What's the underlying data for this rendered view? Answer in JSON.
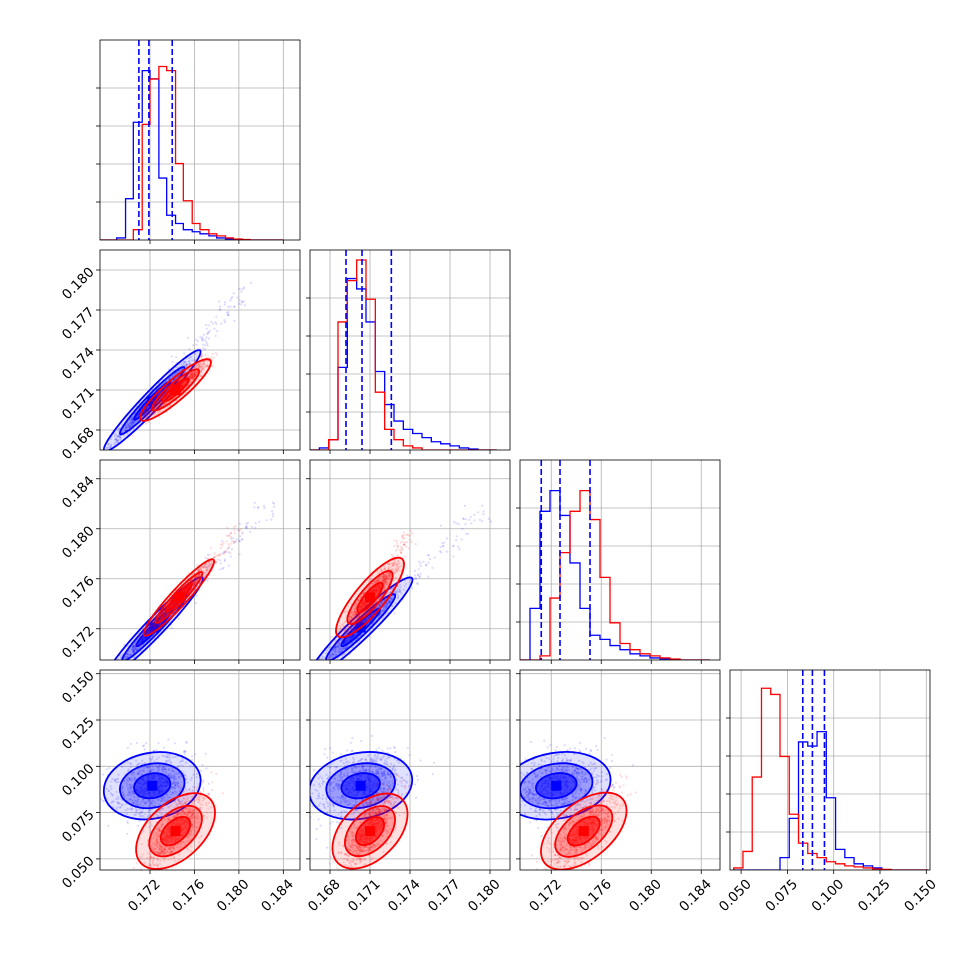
{
  "chart_data": {
    "type": "corner",
    "grid": true,
    "series": [
      {
        "name": "",
        "color": "#0000ff"
      },
      {
        "name": "",
        "color": "#ff0000"
      }
    ],
    "params": [
      {
        "range": [
          0.1675,
          0.1855
        ],
        "ticks": [
          "0.172",
          "0.176",
          "0.180",
          "0.184"
        ]
      },
      {
        "range": [
          0.1665,
          0.1815
        ],
        "ticks": [
          "0.168",
          "0.171",
          "0.174",
          "0.177",
          "0.180"
        ]
      },
      {
        "range": [
          0.1695,
          0.1855
        ],
        "ticks": [
          "0.172",
          "0.176",
          "0.180",
          "0.184"
        ]
      },
      {
        "range": [
          0.044,
          0.152
        ],
        "ticks": [
          "0.050",
          "0.075",
          "0.100",
          "0.125",
          "0.150"
        ]
      }
    ],
    "histograms": [
      {
        "quantile_lines": [
          0.171,
          0.1719,
          0.174
        ],
        "bin_edges": [
          0.1675,
          0.1683,
          0.169,
          0.1698,
          0.1705,
          0.1713,
          0.172,
          0.1728,
          0.1735,
          0.1743,
          0.175,
          0.1758,
          0.1765,
          0.1773,
          0.178,
          0.1788,
          0.1795,
          0.1803,
          0.181,
          0.1818,
          0.1825,
          0.1833,
          0.184
        ],
        "blue": [
          0,
          0,
          0.01,
          0.2,
          0.57,
          0.82,
          0.78,
          0.3,
          0.12,
          0.08,
          0.05,
          0.04,
          0.03,
          0.02,
          0.01,
          0.005,
          0.002,
          0,
          0,
          0,
          0,
          0
        ],
        "red": [
          0,
          0,
          0,
          0,
          0.05,
          0.56,
          0.78,
          0.84,
          0.82,
          0.37,
          0.19,
          0.08,
          0.05,
          0.03,
          0.02,
          0.01,
          0.005,
          0.002,
          0,
          0,
          0,
          0
        ]
      },
      {
        "quantile_lines": [
          0.1692,
          0.1704,
          0.1726
        ],
        "bin_edges": [
          0.1665,
          0.1672,
          0.1679,
          0.1686,
          0.1693,
          0.17,
          0.1707,
          0.1714,
          0.1721,
          0.1728,
          0.1735,
          0.1742,
          0.1749,
          0.1756,
          0.1763,
          0.177,
          0.1777,
          0.1784,
          0.1791,
          0.1798,
          0.1805
        ],
        "blue": [
          0,
          0.01,
          0.05,
          0.4,
          0.83,
          0.78,
          0.62,
          0.38,
          0.22,
          0.14,
          0.1,
          0.08,
          0.06,
          0.04,
          0.03,
          0.02,
          0.01,
          0.005,
          0,
          0
        ],
        "red": [
          0,
          0,
          0.05,
          0.62,
          0.82,
          0.92,
          0.73,
          0.28,
          0.1,
          0.05,
          0.02,
          0.01,
          0,
          0,
          0,
          0,
          0,
          0,
          0,
          0
        ]
      },
      {
        "quantile_lines": [
          0.1712,
          0.1727,
          0.1751
        ],
        "bin_edges": [
          0.1695,
          0.1703,
          0.1711,
          0.1719,
          0.1727,
          0.1735,
          0.1743,
          0.1751,
          0.1759,
          0.1767,
          0.1775,
          0.1783,
          0.1791,
          0.1799,
          0.1807,
          0.1815,
          0.1823,
          0.1831,
          0.1839,
          0.1847
        ],
        "blue": [
          0,
          0.25,
          0.72,
          0.82,
          0.7,
          0.47,
          0.25,
          0.12,
          0.1,
          0.07,
          0.05,
          0.03,
          0.02,
          0.01,
          0.005,
          0,
          0,
          0,
          0
        ],
        "red": [
          0,
          0,
          0.02,
          0.3,
          0.52,
          0.72,
          0.82,
          0.68,
          0.4,
          0.18,
          0.08,
          0.05,
          0.03,
          0.02,
          0.01,
          0.005,
          0,
          0,
          0
        ]
      },
      {
        "quantile_lines": [
          0.0833,
          0.0885,
          0.095
        ],
        "bin_edges": [
          0.046,
          0.051,
          0.056,
          0.061,
          0.066,
          0.071,
          0.076,
          0.081,
          0.086,
          0.091,
          0.096,
          0.101,
          0.106,
          0.111,
          0.116,
          0.121,
          0.126,
          0.131,
          0.136,
          0.141,
          0.146,
          0.151
        ],
        "blue": [
          0,
          0,
          0,
          0,
          0,
          0.06,
          0.25,
          0.62,
          0.6,
          0.67,
          0.35,
          0.1,
          0.06,
          0.03,
          0.02,
          0.01,
          0,
          0,
          0,
          0,
          0
        ],
        "red": [
          0.01,
          0.09,
          0.45,
          0.88,
          0.85,
          0.55,
          0.27,
          0.13,
          0.08,
          0.06,
          0.04,
          0.03,
          0.02,
          0.015,
          0.01,
          0.005,
          0.003,
          0,
          0,
          0,
          0
        ]
      }
    ],
    "scatter_panels": [
      {
        "row": 1,
        "col": 0,
        "blue": {
          "mean": [
            0.1722,
            0.1702
          ],
          "sd": [
            0.0018,
            0.0016
          ],
          "corr": 0.98,
          "tail": [
            0.181,
            0.179
          ]
        },
        "red": {
          "mean": [
            0.1743,
            0.171
          ],
          "sd": [
            0.0013,
            0.001
          ],
          "corr": 0.93,
          "tail": [
            0.1775,
            0.1735
          ]
        }
      },
      {
        "row": 2,
        "col": 0,
        "blue": {
          "mean": [
            0.1724,
            0.1721
          ],
          "sd": [
            0.0018,
            0.0017
          ],
          "corr": 0.98,
          "tail": [
            0.183,
            0.182
          ]
        },
        "red": {
          "mean": [
            0.1746,
            0.1745
          ],
          "sd": [
            0.0013,
            0.0013
          ],
          "corr": 0.97,
          "tail": [
            0.18,
            0.18
          ]
        }
      },
      {
        "row": 2,
        "col": 1,
        "blue": {
          "mean": [
            0.1703,
            0.1721
          ],
          "sd": [
            0.0016,
            0.0017
          ],
          "corr": 0.97,
          "tail": [
            0.1795,
            0.1815
          ]
        },
        "red": {
          "mean": [
            0.171,
            0.1745
          ],
          "sd": [
            0.001,
            0.0014
          ],
          "corr": 0.92,
          "tail": [
            0.174,
            0.1795
          ]
        }
      },
      {
        "row": 3,
        "col": 0,
        "blue": {
          "mean": [
            0.1722,
            0.0895
          ],
          "sd": [
            0.0018,
            0.0085
          ],
          "corr": 0.25
        },
        "red": {
          "mean": [
            0.1743,
            0.065
          ],
          "sd": [
            0.0013,
            0.01
          ],
          "corr": 0.72
        }
      },
      {
        "row": 3,
        "col": 1,
        "blue": {
          "mean": [
            0.1703,
            0.0895
          ],
          "sd": [
            0.0016,
            0.0085
          ],
          "corr": 0.25
        },
        "red": {
          "mean": [
            0.171,
            0.065
          ],
          "sd": [
            0.001,
            0.01
          ],
          "corr": 0.72
        }
      },
      {
        "row": 3,
        "col": 2,
        "blue": {
          "mean": [
            0.1724,
            0.0895
          ],
          "sd": [
            0.0018,
            0.0085
          ],
          "corr": 0.25
        },
        "red": {
          "mean": [
            0.1746,
            0.065
          ],
          "sd": [
            0.0013,
            0.01
          ],
          "corr": 0.72
        }
      }
    ]
  }
}
